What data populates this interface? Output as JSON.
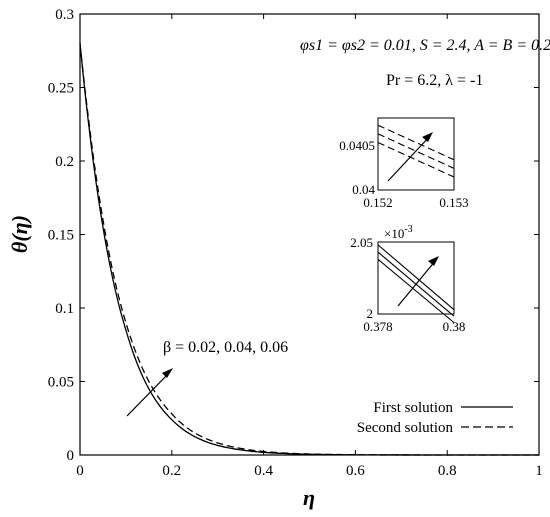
{
  "chart_data": [
    {
      "type": "line",
      "xlabel": "η",
      "ylabel": "θ(η)",
      "xlim": [
        0,
        1
      ],
      "ylim": [
        0,
        0.3
      ],
      "xticks": [
        "0",
        "0.2",
        "0.4",
        "0.6",
        "0.8",
        "1"
      ],
      "yticks": [
        "0",
        "0.05",
        "0.1",
        "0.15",
        "0.2",
        "0.25",
        "0.3"
      ],
      "annotations": {
        "params_line1": "φs1 = φs2 = 0.01, S = 2.4, A = B = 0.2",
        "params_line2": "Pr = 6.2, λ = -1",
        "beta_label": "β = 0.02, 0.04, 0.06"
      },
      "legend": {
        "position": "bottom-right",
        "entries": [
          "First solution",
          "Second solution"
        ]
      },
      "series": [
        {
          "name": "First solution",
          "style": "solid",
          "x": [
            0,
            0.02,
            0.05,
            0.08,
            0.1,
            0.15,
            0.2,
            0.25,
            0.3,
            0.35,
            0.4,
            0.5,
            0.6,
            0.7,
            0.8,
            1.0
          ],
          "y": [
            0.28,
            0.222,
            0.155,
            0.108,
            0.085,
            0.045,
            0.024,
            0.0125,
            0.0065,
            0.0035,
            0.0018,
            0.0005,
            0.00012,
            3e-05,
            0.0,
            0.0
          ]
        },
        {
          "name": "Second solution",
          "style": "dashed",
          "x": [
            0,
            0.02,
            0.05,
            0.08,
            0.1,
            0.15,
            0.2,
            0.25,
            0.3,
            0.35,
            0.4,
            0.5,
            0.6,
            0.7,
            0.8,
            1.0
          ],
          "y": [
            0.28,
            0.225,
            0.16,
            0.113,
            0.09,
            0.05,
            0.028,
            0.015,
            0.0082,
            0.0045,
            0.0024,
            0.0007,
            0.0002,
            5e-05,
            0.0,
            0.0
          ]
        }
      ]
    },
    {
      "type": "line",
      "xlim": [
        0.152,
        0.153
      ],
      "ylim": [
        0.04,
        0.041
      ],
      "xticks": [
        "0.152",
        "0.153"
      ],
      "yticks": [
        "0.04",
        "0.0405"
      ],
      "series": [
        {
          "style": "dashed",
          "x": [
            0.152,
            0.153
          ],
          "y": [
            0.0409,
            0.04042
          ]
        },
        {
          "style": "dashed",
          "x": [
            0.152,
            0.153
          ],
          "y": [
            0.04078,
            0.0403
          ]
        },
        {
          "style": "dashed",
          "x": [
            0.152,
            0.153
          ],
          "y": [
            0.04066,
            0.04018
          ]
        }
      ]
    },
    {
      "type": "line",
      "xlim": [
        0.378,
        0.38
      ],
      "ylim": [
        0.002,
        0.00205
      ],
      "xticks": [
        "0.378",
        "0.38"
      ],
      "yticks": [
        "2",
        "2.05"
      ],
      "scale_label": "×10",
      "scale_exp": "-3",
      "series": [
        {
          "style": "solid",
          "x": [
            0.378,
            0.38
          ],
          "y": [
            0.002048,
            0.002003
          ]
        },
        {
          "style": "solid",
          "x": [
            0.378,
            0.38
          ],
          "y": [
            0.002043,
            0.0019985
          ]
        },
        {
          "style": "solid",
          "x": [
            0.378,
            0.38
          ],
          "y": [
            0.002038,
            0.001994
          ]
        }
      ]
    }
  ]
}
